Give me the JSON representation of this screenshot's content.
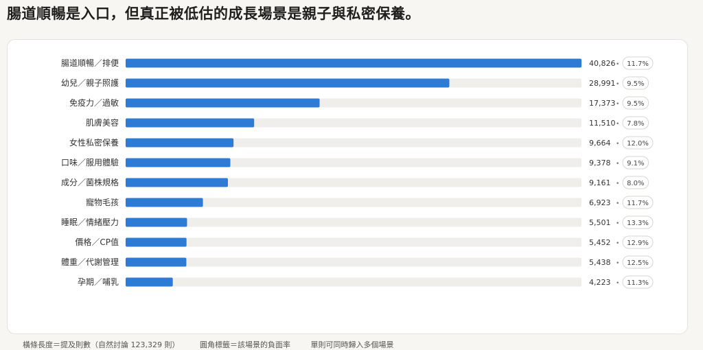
{
  "header": {
    "title": "腸道順暢是入口，但真正被低估的成長場景是親子與私密保養。"
  },
  "chart_data": {
    "type": "bar",
    "orientation": "horizontal",
    "title": "腸道順暢是入口，但真正被低估的成長場景是親子與私密保養。",
    "categories": [
      "腸道順暢／排便",
      "幼兒／親子照護",
      "免疫力／過敏",
      "肌膚美容",
      "女性私密保養",
      "口味／服用體驗",
      "成分／菌株規格",
      "寵物毛孩",
      "睡眠／情緒壓力",
      "價格／CP值",
      "體重／代謝管理",
      "孕期／哺乳"
    ],
    "values": [
      40826,
      28991,
      17373,
      11510,
      9664,
      9378,
      9161,
      6923,
      5501,
      5452,
      5438,
      4223
    ],
    "value_labels": [
      "40,826",
      "28,991",
      "17,373",
      "11,510",
      "9,664",
      "9,378",
      "9,161",
      "6,923",
      "5,501",
      "5,452",
      "5,438",
      "4,223"
    ],
    "negative_rates": [
      "11.7%",
      "9.5%",
      "9.5%",
      "7.8%",
      "12.0%",
      "9.1%",
      "8.0%",
      "11.7%",
      "13.3%",
      "12.9%",
      "12.5%",
      "11.3%"
    ],
    "separator": "•",
    "xlim": [
      0,
      40826
    ],
    "grid": false,
    "colors": {
      "bar": "#2e7bd6",
      "track": "#f0eeea",
      "pill_border": "#d8d5ce"
    }
  },
  "footnote": {
    "bar_length": "橫條長度＝提及則數（自然討論 123,329 則）",
    "pill": "圓角標籤＝該場景的負面率",
    "multi": "單則可同時歸入多個場景"
  }
}
